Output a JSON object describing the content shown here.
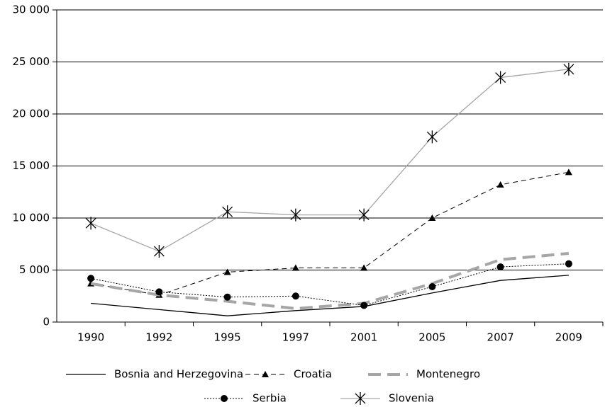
{
  "chart_data": {
    "type": "line",
    "categories": [
      "1990",
      "1992",
      "1995",
      "1997",
      "2001",
      "2005",
      "2007",
      "2009"
    ],
    "series": [
      {
        "name": "Bosnia and Herzegovina",
        "color": "#000000",
        "line_style": "solid",
        "marker": "none",
        "values": [
          1800,
          1200,
          600,
          1100,
          1500,
          2800,
          4000,
          4500
        ]
      },
      {
        "name": "Croatia",
        "color": "#000000",
        "line_style": "dashed",
        "marker": "triangle",
        "values": [
          3700,
          2600,
          4800,
          5200,
          5200,
          10000,
          13200,
          14400
        ]
      },
      {
        "name": "Montenegro",
        "color": "#a6a6a6",
        "line_style": "thick-dashed",
        "marker": "none",
        "values": [
          3700,
          2600,
          2000,
          1300,
          1800,
          3700,
          6000,
          6600
        ]
      },
      {
        "name": "Serbia",
        "color": "#000000",
        "line_style": "dotted",
        "marker": "circle",
        "values": [
          4200,
          2900,
          2400,
          2500,
          1600,
          3400,
          5300,
          5600
        ]
      },
      {
        "name": "Slovenia",
        "color": "#a6a6a6",
        "line_style": "solid",
        "marker": "asterisk",
        "values": [
          9500,
          6800,
          10600,
          10300,
          10300,
          17800,
          23500,
          24300
        ]
      }
    ],
    "ylim": [
      0,
      30000
    ],
    "yticks": [
      0,
      {
        "value": 5000,
        "label": "5 000"
      },
      {
        "value": 10000,
        "label": "10 000"
      },
      {
        "value": 15000,
        "label": "15 000"
      },
      {
        "value": 20000,
        "label": "20 000"
      },
      {
        "value": 25000,
        "label": "25 000"
      },
      {
        "value": 30000,
        "label": "30 000"
      }
    ],
    "grid": true,
    "legend": "bottom"
  }
}
